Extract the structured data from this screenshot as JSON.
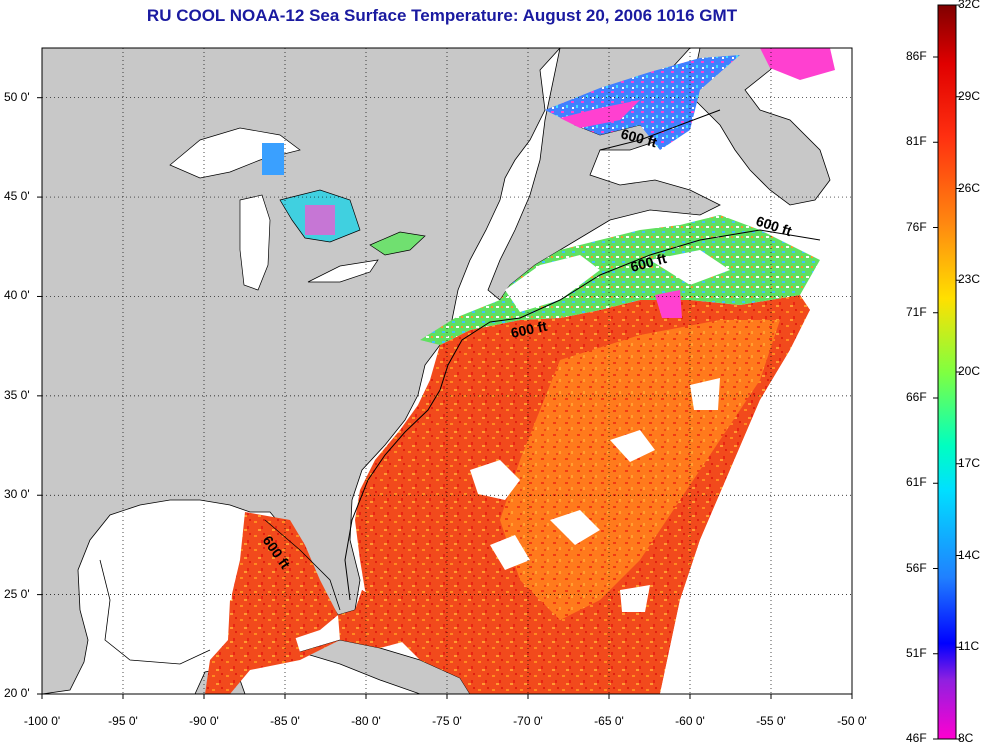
{
  "title": "RU COOL  NOAA-12  Sea Surface Temperature:  August 20, 2006 1016 GMT",
  "map": {
    "lon_range": [
      -100,
      -50
    ],
    "lat_range": [
      20,
      52.5
    ],
    "grid": "dotted",
    "colors": {
      "land": "#c8c8c8",
      "cloud": "#ffffff",
      "warm": "#f04a1a",
      "hot": "#e82818",
      "mid": "#ff8020",
      "cool": "#40d8a0",
      "cold": "#3070ff",
      "coldest": "#ff40d0"
    }
  },
  "x_ticks": [
    "-100 0'",
    "-95 0'",
    "-90 0'",
    "-85 0'",
    "-80 0'",
    "-75 0'",
    "-70 0'",
    "-65 0'",
    "-60 0'",
    "-55 0'",
    "-50 0'"
  ],
  "y_ticks": [
    "20 0'",
    "25 0'",
    "30 0'",
    "35 0'",
    "40 0'",
    "45 0'",
    "50 0'"
  ],
  "isobath_labels": [
    "600 ft",
    "600 ft",
    "600 ft",
    "600 ft",
    "600 ft"
  ],
  "colorbar": {
    "fahrenheit": [
      "86F",
      "81F",
      "76F",
      "71F",
      "66F",
      "61F",
      "56F",
      "51F",
      "46F"
    ],
    "celsius": [
      "32C",
      "29C",
      "26C",
      "23C",
      "20C",
      "17C",
      "14C",
      "11C",
      "8C"
    ]
  }
}
